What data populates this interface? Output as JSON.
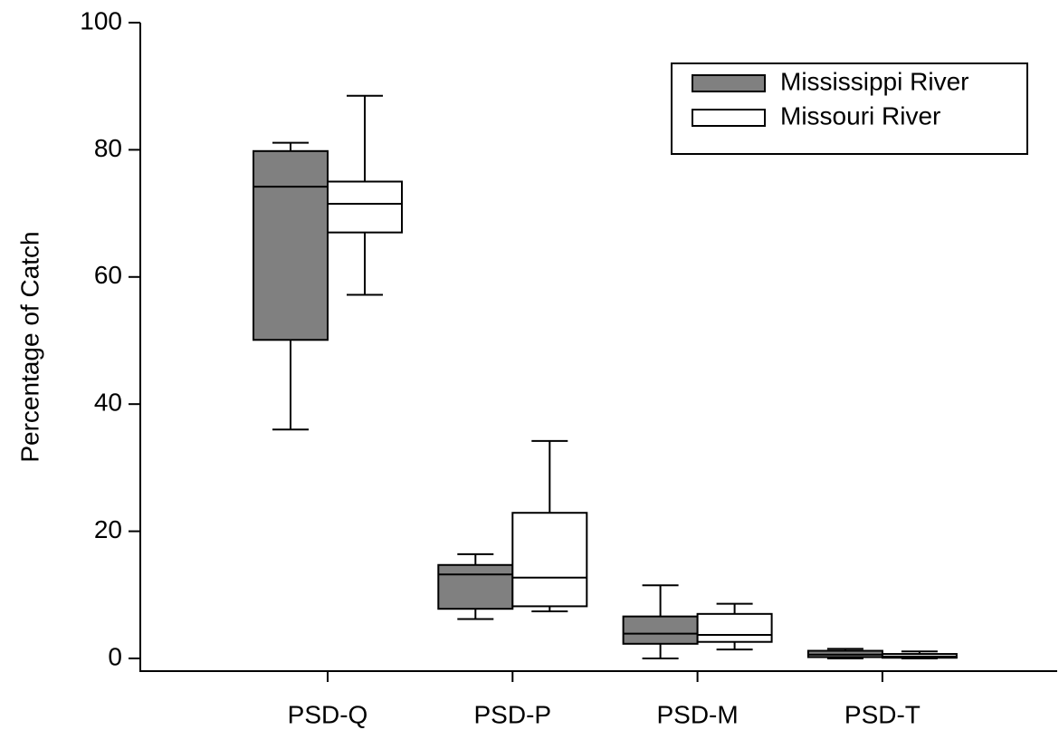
{
  "chart_data": {
    "type": "box",
    "y_label": "Percentage of Catch",
    "categories": [
      "PSD-Q",
      "PSD-P",
      "PSD-M",
      "PSD-T"
    ],
    "ylim": [
      -2,
      100
    ],
    "yticks": [
      0,
      20,
      40,
      60,
      80,
      100
    ],
    "legend": "upper right",
    "series": [
      {
        "name": "Mississippi River",
        "color": "#808080",
        "min": [
          36.0,
          6.2,
          0.0,
          0.0
        ],
        "q1": [
          50.1,
          7.8,
          2.3,
          0.2
        ],
        "median": [
          74.2,
          13.2,
          3.9,
          0.6
        ],
        "q3": [
          79.8,
          14.7,
          6.6,
          1.2
        ],
        "max": [
          81.1,
          16.4,
          11.5,
          1.5
        ]
      },
      {
        "name": "Missouri River",
        "color": "#ffffff",
        "min": [
          57.2,
          7.4,
          1.4,
          0.0
        ],
        "q1": [
          67.0,
          8.2,
          2.6,
          0.1
        ],
        "median": [
          71.5,
          12.7,
          3.7,
          0.3
        ],
        "q3": [
          75.0,
          22.9,
          7.0,
          0.7
        ],
        "max": [
          88.5,
          34.2,
          8.6,
          1.1
        ]
      }
    ]
  }
}
